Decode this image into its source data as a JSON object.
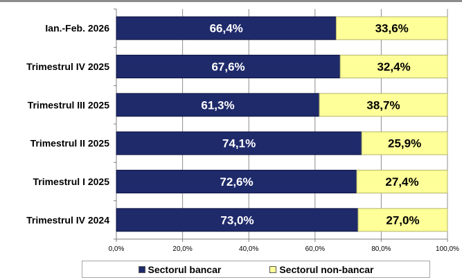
{
  "chart_data": {
    "type": "bar",
    "orientation": "horizontal",
    "stacked": true,
    "title": "",
    "xlabel": "",
    "ylabel": "",
    "xlim": [
      0,
      100
    ],
    "grid": true,
    "legend_placement": "bottom",
    "categories": [
      "Ian.-Feb. 2026",
      "Trimestrul IV 2025",
      "Trimestrul III 2025",
      "Trimestrul II 2025",
      "Trimestrul I 2025",
      "Trimestrul IV 2024"
    ],
    "x_ticks": [
      0,
      20,
      40,
      60,
      80,
      100
    ],
    "x_tick_labels": [
      "0,0%",
      "20,0%",
      "40,0%",
      "60,0%",
      "80,0%",
      "100,0%"
    ],
    "series": [
      {
        "name": "Sectorul bancar",
        "color": "#1f2a6b",
        "values": [
          66.4,
          67.6,
          61.3,
          74.1,
          72.6,
          73.0
        ],
        "labels": [
          "66,4%",
          "67,6%",
          "61,3%",
          "74,1%",
          "72,6%",
          "73,0%"
        ]
      },
      {
        "name": "Sectorul non-bancar",
        "color": "#ffff99",
        "values": [
          33.6,
          32.4,
          38.7,
          25.9,
          27.4,
          27.0
        ],
        "labels": [
          "33,6%",
          "32,4%",
          "38,7%",
          "25,9%",
          "27,4%",
          "27,0%"
        ]
      }
    ]
  }
}
